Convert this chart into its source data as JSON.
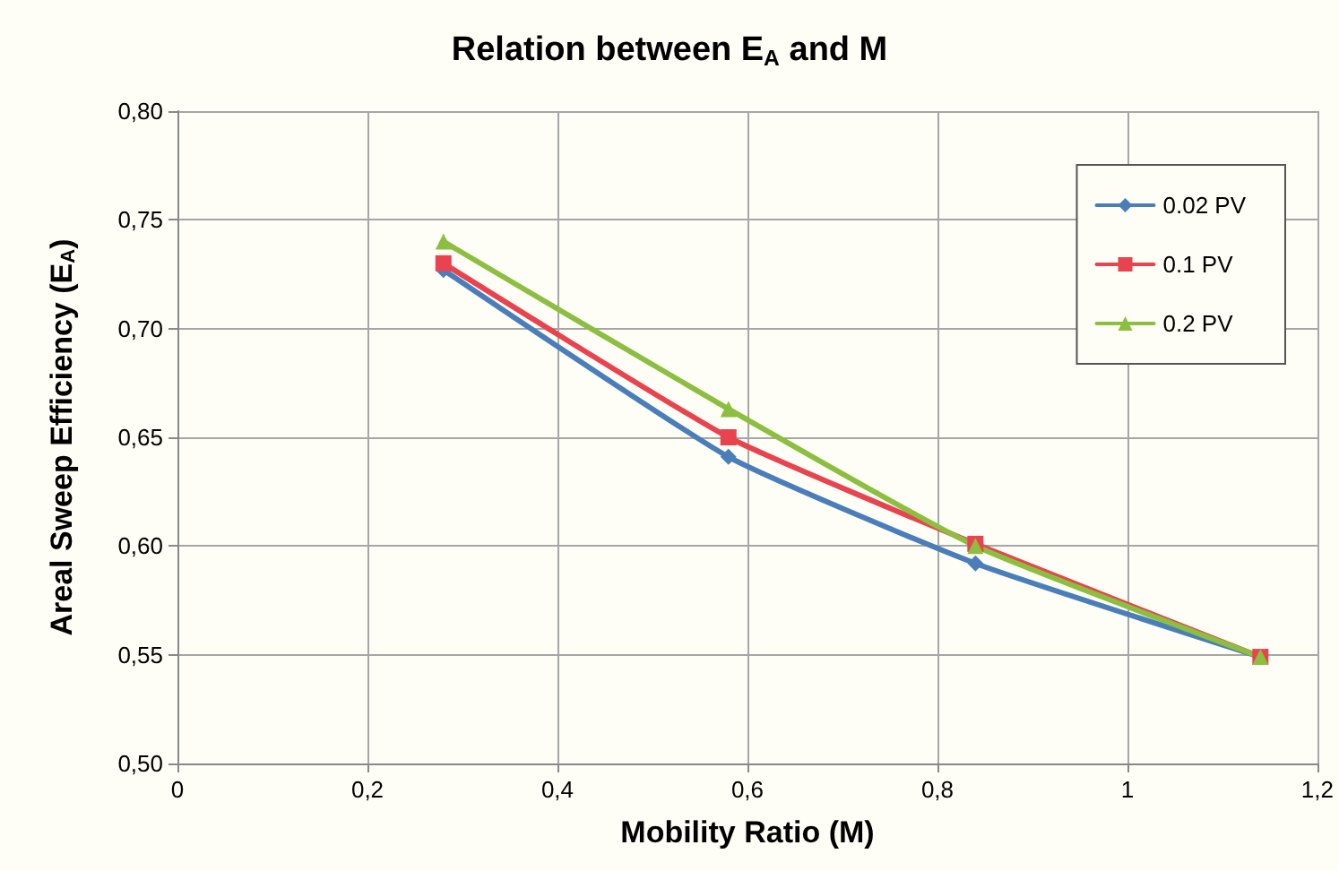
{
  "chart_data": {
    "type": "line",
    "title": "Relation between E$_{A}$ and M",
    "xlabel": "Mobility Ratio (M)",
    "ylabel": "Areal Sweep Efficiency (E$_{A}$)",
    "x": [
      0.28,
      0.58,
      0.84,
      1.14
    ],
    "series": [
      {
        "name": "0.02 PV",
        "color": "#4a7ebb",
        "marker": "diamond",
        "values": [
          0.727,
          0.641,
          0.592,
          0.549
        ]
      },
      {
        "name": "0.1 PV",
        "color": "#e8434e",
        "marker": "square",
        "values": [
          0.73,
          0.65,
          0.601,
          0.549
        ]
      },
      {
        "name": "0.2 PV",
        "color": "#8cbf3f",
        "marker": "triangle",
        "values": [
          0.74,
          0.663,
          0.6,
          0.549
        ]
      }
    ],
    "xlim": [
      0,
      1.2
    ],
    "xticks": [
      0,
      {
        "value": 0.2,
        "label": "0,2"
      },
      {
        "value": 0.4,
        "label": "0,4"
      },
      {
        "value": 0.6,
        "label": "0,6"
      },
      {
        "value": 0.8,
        "label": "0,8"
      },
      1,
      {
        "value": 1.2,
        "label": "1,2"
      }
    ],
    "ylim": [
      0.5,
      0.8
    ],
    "yticks": [
      {
        "value": 0.5,
        "label": "0,50"
      },
      {
        "value": 0.55,
        "label": "0,55"
      },
      {
        "value": 0.6,
        "label": "0,60"
      },
      {
        "value": 0.65,
        "label": "0,65"
      },
      {
        "value": 0.7,
        "label": "0,70"
      },
      {
        "value": 0.75,
        "label": "0,75"
      },
      {
        "value": 0.8,
        "label": "0,80"
      }
    ],
    "grid": true,
    "legend": "top right",
    "line_style": "solid"
  }
}
